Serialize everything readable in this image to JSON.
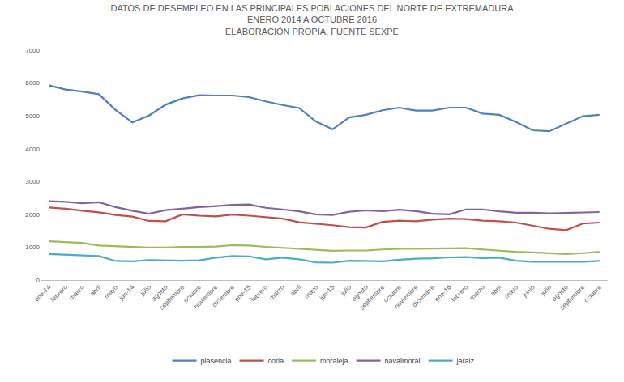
{
  "chart_data": {
    "type": "line",
    "title": [
      "DATOS DE DESEMPLEO EN LAS PRINCIPALES POBLACIONES DEL NORTE DE EXTREMADURA",
      "ENERO 2014 A OCTUBRE 2016",
      "ELABORACIÓN PROPIA, FUENTE SEXPE"
    ],
    "categories": [
      "ene-14",
      "febrero",
      "marzo",
      "abril",
      "mayo",
      "jun-14",
      "julio",
      "agosto",
      "septiembre",
      "octubre",
      "noviembre",
      "diciembre",
      "ene-15",
      "febrero",
      "marzo",
      "abril",
      "mayo",
      "jun-15",
      "julio",
      "agosto",
      "septiembre",
      "octubre",
      "noviembre",
      "diciembre",
      "ene-16",
      "febrero",
      "marzo",
      "abril",
      "mayo",
      "junio",
      "julio",
      "agosto",
      "septiembre",
      "octubre"
    ],
    "series": [
      {
        "name": "plasencia",
        "color": "#4f81bd",
        "values": [
          5930,
          5800,
          5740,
          5660,
          5180,
          4800,
          5010,
          5340,
          5530,
          5630,
          5620,
          5620,
          5570,
          5440,
          5330,
          5240,
          4830,
          4590,
          4950,
          5030,
          5170,
          5250,
          5160,
          5160,
          5250,
          5250,
          5070,
          5030,
          4810,
          4560,
          4530,
          4760,
          4990,
          5030
        ]
      },
      {
        "name": "coria",
        "color": "#c0504d",
        "values": [
          2210,
          2170,
          2110,
          2060,
          1980,
          1930,
          1800,
          1790,
          2000,
          1960,
          1940,
          1990,
          1960,
          1920,
          1870,
          1760,
          1720,
          1670,
          1610,
          1600,
          1770,
          1810,
          1790,
          1840,
          1870,
          1860,
          1810,
          1790,
          1750,
          1650,
          1560,
          1520,
          1720,
          1750
        ]
      },
      {
        "name": "moraleja",
        "color": "#9bbb59",
        "values": [
          1180,
          1160,
          1130,
          1050,
          1030,
          1020,
          990,
          990,
          1010,
          1010,
          1020,
          1060,
          1050,
          1010,
          980,
          940,
          910,
          890,
          900,
          900,
          930,
          950,
          950,
          960,
          970,
          970,
          930,
          890,
          860,
          840,
          820,
          790,
          820,
          860
        ]
      },
      {
        "name": "navalmoral",
        "color": "#8064a2",
        "values": [
          2400,
          2380,
          2340,
          2370,
          2220,
          2110,
          2020,
          2130,
          2170,
          2220,
          2250,
          2290,
          2300,
          2200,
          2150,
          2090,
          2000,
          1980,
          2080,
          2120,
          2100,
          2140,
          2100,
          2020,
          2000,
          2150,
          2150,
          2090,
          2050,
          2050,
          2030,
          2040,
          2060,
          2070
        ]
      },
      {
        "name": "jaraiz",
        "color": "#4bacc6",
        "values": [
          790,
          770,
          760,
          730,
          580,
          570,
          610,
          600,
          590,
          600,
          680,
          730,
          720,
          630,
          680,
          630,
          540,
          530,
          590,
          580,
          570,
          620,
          650,
          660,
          690,
          700,
          670,
          680,
          590,
          560,
          560,
          570,
          560,
          580
        ]
      }
    ],
    "ylim": [
      0,
      7000
    ],
    "yticks": [
      0,
      1000,
      2000,
      3000,
      4000,
      5000,
      6000,
      7000
    ],
    "grid": false,
    "legend": "bottom",
    "line_style": "solid",
    "marker": "none"
  }
}
